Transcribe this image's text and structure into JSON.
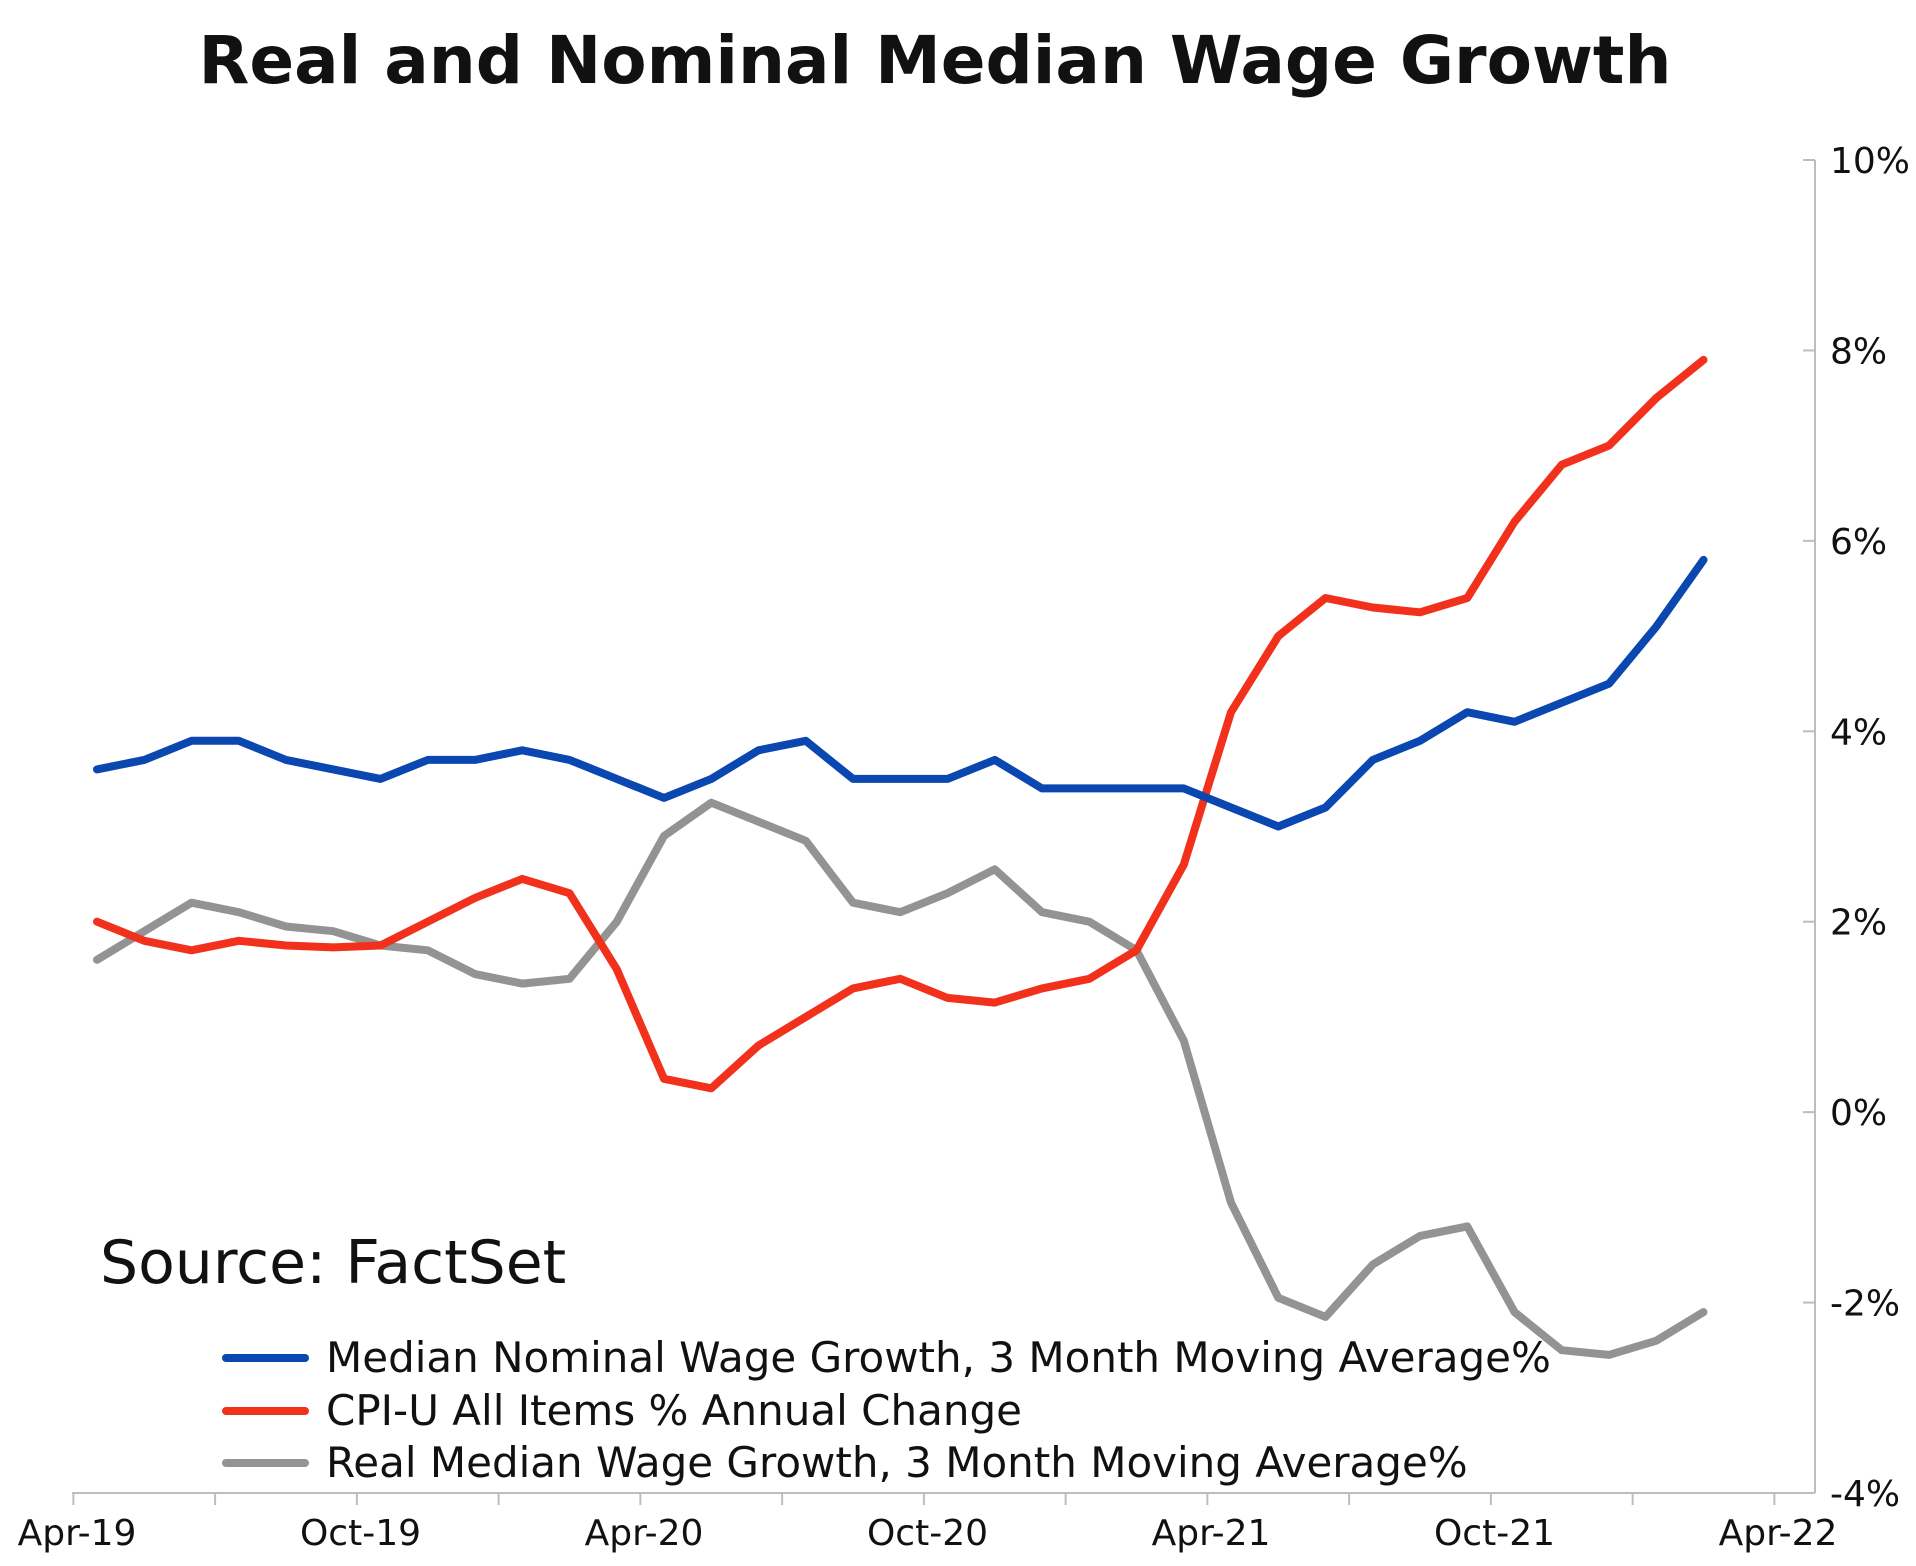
{
  "chart_data": {
    "type": "line",
    "title": "Real and Nominal Median Wage Growth",
    "source": "Source: FactSet",
    "x_ticks": [
      "Apr-19",
      "Oct-19",
      "Apr-20",
      "Oct-20",
      "Apr-21",
      "Oct-21",
      "Apr-22"
    ],
    "y_ticks": [
      "10%",
      "8%",
      "6%",
      "4%",
      "2%",
      "0%",
      "-2%",
      "-4%"
    ],
    "ylim": [
      -4,
      10
    ],
    "y_axis_side": "right",
    "grid": false,
    "legend_position": "bottom-left",
    "x": [
      "Apr-19",
      "May-19",
      "Jun-19",
      "Jul-19",
      "Aug-19",
      "Sep-19",
      "Oct-19",
      "Nov-19",
      "Dec-19",
      "Jan-20",
      "Feb-20",
      "Mar-20",
      "Apr-20",
      "May-20",
      "Jun-20",
      "Jul-20",
      "Aug-20",
      "Sep-20",
      "Oct-20",
      "Nov-20",
      "Dec-20",
      "Jan-21",
      "Feb-21",
      "Mar-21",
      "Apr-21",
      "May-21",
      "Jun-21",
      "Jul-21",
      "Aug-21",
      "Sep-21",
      "Oct-21",
      "Nov-21",
      "Dec-21",
      "Jan-22",
      "Feb-22"
    ],
    "series": [
      {
        "name": "Median Nominal Wage Growth, 3 Month Moving Average%",
        "color": "#0a47b0",
        "values": [
          3.6,
          3.7,
          3.9,
          3.9,
          3.7,
          3.6,
          3.5,
          3.7,
          3.7,
          3.8,
          3.7,
          3.5,
          3.3,
          3.5,
          3.8,
          3.9,
          3.5,
          3.5,
          3.5,
          3.7,
          3.4,
          3.4,
          3.4,
          3.4,
          3.2,
          3.0,
          3.2,
          3.7,
          3.9,
          4.2,
          4.1,
          4.3,
          4.5,
          5.1,
          5.8
        ]
      },
      {
        "name": "CPI-U All Items % Annual Change",
        "color": "#f2311d",
        "values": [
          2.0,
          1.8,
          1.7,
          1.8,
          1.75,
          1.73,
          1.75,
          2.0,
          2.25,
          2.45,
          2.3,
          1.5,
          0.35,
          0.25,
          0.7,
          1.0,
          1.3,
          1.4,
          1.2,
          1.15,
          1.3,
          1.4,
          1.7,
          2.6,
          4.2,
          5.0,
          5.4,
          5.3,
          5.25,
          5.4,
          6.2,
          6.8,
          7.0,
          7.5,
          7.9
        ]
      },
      {
        "name": "Real Median Wage Growth, 3 Month Moving Average%",
        "color": "#939393",
        "values": [
          1.6,
          1.9,
          2.2,
          2.1,
          1.95,
          1.9,
          1.75,
          1.7,
          1.45,
          1.35,
          1.4,
          2.0,
          2.9,
          3.25,
          3.05,
          2.85,
          2.2,
          2.1,
          2.3,
          2.55,
          2.1,
          2.0,
          1.7,
          0.75,
          -0.95,
          -1.95,
          -2.15,
          -1.6,
          -1.3,
          -1.2,
          -2.1,
          -2.5,
          -2.55,
          -2.4,
          -2.1
        ]
      }
    ]
  }
}
